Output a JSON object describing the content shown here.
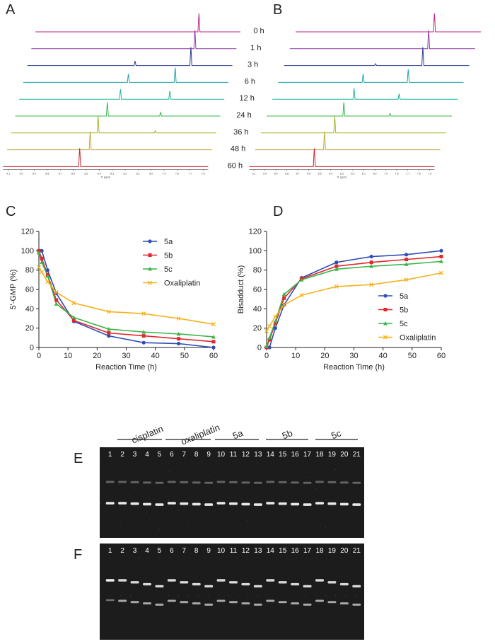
{
  "panels": {
    "A": "A",
    "B": "B",
    "C": "C",
    "D": "D",
    "E": "E",
    "F": "F"
  },
  "nmr": {
    "time_labels": [
      "0 h",
      "1 h",
      "3 h",
      "6 h",
      "12 h",
      "24 h",
      "36 h",
      "48 h",
      "60 h"
    ],
    "colors": [
      "#c0268a",
      "#8e3aa3",
      "#2b3a8f",
      "#1aa3ad",
      "#1fb5a0",
      "#39b54a",
      "#a8b52a",
      "#c2a83a",
      "#c8282e"
    ],
    "A": {
      "ticks": [
        "9.1",
        "9.0",
        "8.9",
        "8.8",
        "8.7",
        "8.6",
        "8.5",
        "8.4",
        "8.3",
        "8.2",
        "8.1",
        "8.0",
        "7.9",
        "7.8",
        "7.7",
        "7.6"
      ],
      "xlabel": "f1 (ppm)",
      "peaks": [
        [
          {
            "ppm": 7.88,
            "h": 1.0
          }
        ],
        [
          {
            "ppm": 7.88,
            "h": 1.0
          }
        ],
        [
          {
            "ppm": 8.31,
            "h": 0.25
          },
          {
            "ppm": 7.88,
            "h": 1.0
          }
        ],
        [
          {
            "ppm": 8.33,
            "h": 0.45
          },
          {
            "ppm": 7.97,
            "h": 0.8
          }
        ],
        [
          {
            "ppm": 8.36,
            "h": 0.55
          },
          {
            "ppm": 7.98,
            "h": 0.45
          }
        ],
        [
          {
            "ppm": 8.43,
            "h": 0.75
          },
          {
            "ppm": 8.02,
            "h": 0.2
          }
        ],
        [
          {
            "ppm": 8.47,
            "h": 0.9
          },
          {
            "ppm": 8.03,
            "h": 0.12
          }
        ],
        [
          {
            "ppm": 8.5,
            "h": 1.0
          }
        ],
        [
          {
            "ppm": 8.55,
            "h": 1.0
          }
        ]
      ]
    },
    "B": {
      "ticks": [
        "9.1",
        "9.0",
        "8.9",
        "8.8",
        "8.7",
        "8.6",
        "8.5",
        "8.4",
        "8.3",
        "8.2",
        "8.1",
        "8.0",
        "7.9",
        "7.8",
        "7.7",
        "7.6",
        "7.5"
      ],
      "xlabel": "f1 (ppm)",
      "peaks": [
        [
          {
            "ppm": 7.88,
            "h": 1.0
          }
        ],
        [
          {
            "ppm": 7.88,
            "h": 1.0
          }
        ],
        [
          {
            "ppm": 8.31,
            "h": 0.1
          },
          {
            "ppm": 7.88,
            "h": 1.0
          }
        ],
        [
          {
            "ppm": 8.37,
            "h": 0.45
          },
          {
            "ppm": 7.96,
            "h": 0.7
          }
        ],
        [
          {
            "ppm": 8.4,
            "h": 0.6
          },
          {
            "ppm": 7.99,
            "h": 0.3
          }
        ],
        [
          {
            "ppm": 8.44,
            "h": 0.75
          },
          {
            "ppm": 8.02,
            "h": 0.15
          }
        ],
        [
          {
            "ppm": 8.47,
            "h": 0.9
          }
        ],
        [
          {
            "ppm": 8.51,
            "h": 1.0
          }
        ],
        [
          {
            "ppm": 8.55,
            "h": 1.0
          }
        ]
      ]
    }
  },
  "chart_data": [
    {
      "type": "line",
      "panel": "C",
      "xlabel": "Reaction Time (h)",
      "ylabel": "5'-GMP (%)",
      "xlim": [
        0,
        60
      ],
      "ylim": [
        0,
        120
      ],
      "xticks": [
        0,
        10,
        20,
        30,
        40,
        50,
        60
      ],
      "yticks": [
        0,
        20,
        40,
        60,
        80,
        100,
        120
      ],
      "legend": "top-right",
      "series": [
        {
          "name": "5a",
          "color": "#2f4eb5",
          "marker": "circle",
          "x": [
            0,
            1,
            3,
            6,
            12,
            24,
            36,
            48,
            60
          ],
          "values": [
            100,
            100,
            80,
            56,
            27,
            12,
            5,
            4,
            0
          ]
        },
        {
          "name": "5b",
          "color": "#e0282e",
          "marker": "square",
          "x": [
            0,
            1,
            3,
            6,
            12,
            24,
            36,
            48,
            60
          ],
          "values": [
            100,
            92,
            75,
            49,
            28,
            15,
            12,
            9,
            6
          ]
        },
        {
          "name": "5c",
          "color": "#3cb54a",
          "marker": "triangle",
          "x": [
            0,
            1,
            3,
            6,
            12,
            24,
            36,
            48,
            60
          ],
          "values": [
            98,
            88,
            74,
            45,
            31,
            19,
            16,
            14,
            11
          ]
        },
        {
          "name": "Oxaliplatin",
          "color": "#f5b21c",
          "marker": "x",
          "x": [
            0,
            1,
            3,
            6,
            12,
            24,
            36,
            48,
            60
          ],
          "values": [
            83,
            78,
            68,
            57,
            46,
            37,
            35,
            30,
            24
          ]
        }
      ]
    },
    {
      "type": "line",
      "panel": "D",
      "xlabel": "Reaction Time (h)",
      "ylabel": "Bisadduct (%)",
      "xlim": [
        0,
        60
      ],
      "ylim": [
        0,
        120
      ],
      "xticks": [
        0,
        10,
        20,
        30,
        40,
        50,
        60
      ],
      "yticks": [
        0,
        20,
        40,
        60,
        80,
        100,
        120
      ],
      "legend": "bottom-right",
      "series": [
        {
          "name": "5a",
          "color": "#2f4eb5",
          "marker": "circle",
          "x": [
            0,
            1,
            3,
            6,
            12,
            24,
            36,
            48,
            60
          ],
          "values": [
            0,
            0,
            20,
            44,
            72,
            88,
            94,
            96,
            100
          ]
        },
        {
          "name": "5b",
          "color": "#e0282e",
          "marker": "square",
          "x": [
            0,
            1,
            3,
            6,
            12,
            24,
            36,
            48,
            60
          ],
          "values": [
            0,
            8,
            25,
            51,
            71,
            84,
            88,
            91,
            94
          ]
        },
        {
          "name": "5c",
          "color": "#3cb54a",
          "marker": "triangle",
          "x": [
            0,
            1,
            3,
            6,
            12,
            24,
            36,
            48,
            60
          ],
          "values": [
            1,
            10,
            27,
            55,
            70,
            81,
            84,
            86,
            89
          ]
        },
        {
          "name": "Oxaliplatin",
          "color": "#f5b21c",
          "marker": "x",
          "x": [
            0,
            1,
            3,
            6,
            12,
            24,
            36,
            48,
            60
          ],
          "values": [
            17,
            22,
            32,
            44,
            54,
            63,
            65,
            70,
            77
          ]
        }
      ]
    }
  ],
  "gels": {
    "groups": [
      "cisplatin",
      "oxaliplatin",
      "5a",
      "5b",
      "5c"
    ],
    "lanes": [
      "1",
      "2",
      "3",
      "4",
      "5",
      "6",
      "7",
      "8",
      "9",
      "10",
      "11",
      "12",
      "13",
      "14",
      "15",
      "16",
      "17",
      "18",
      "19",
      "20",
      "21"
    ]
  }
}
